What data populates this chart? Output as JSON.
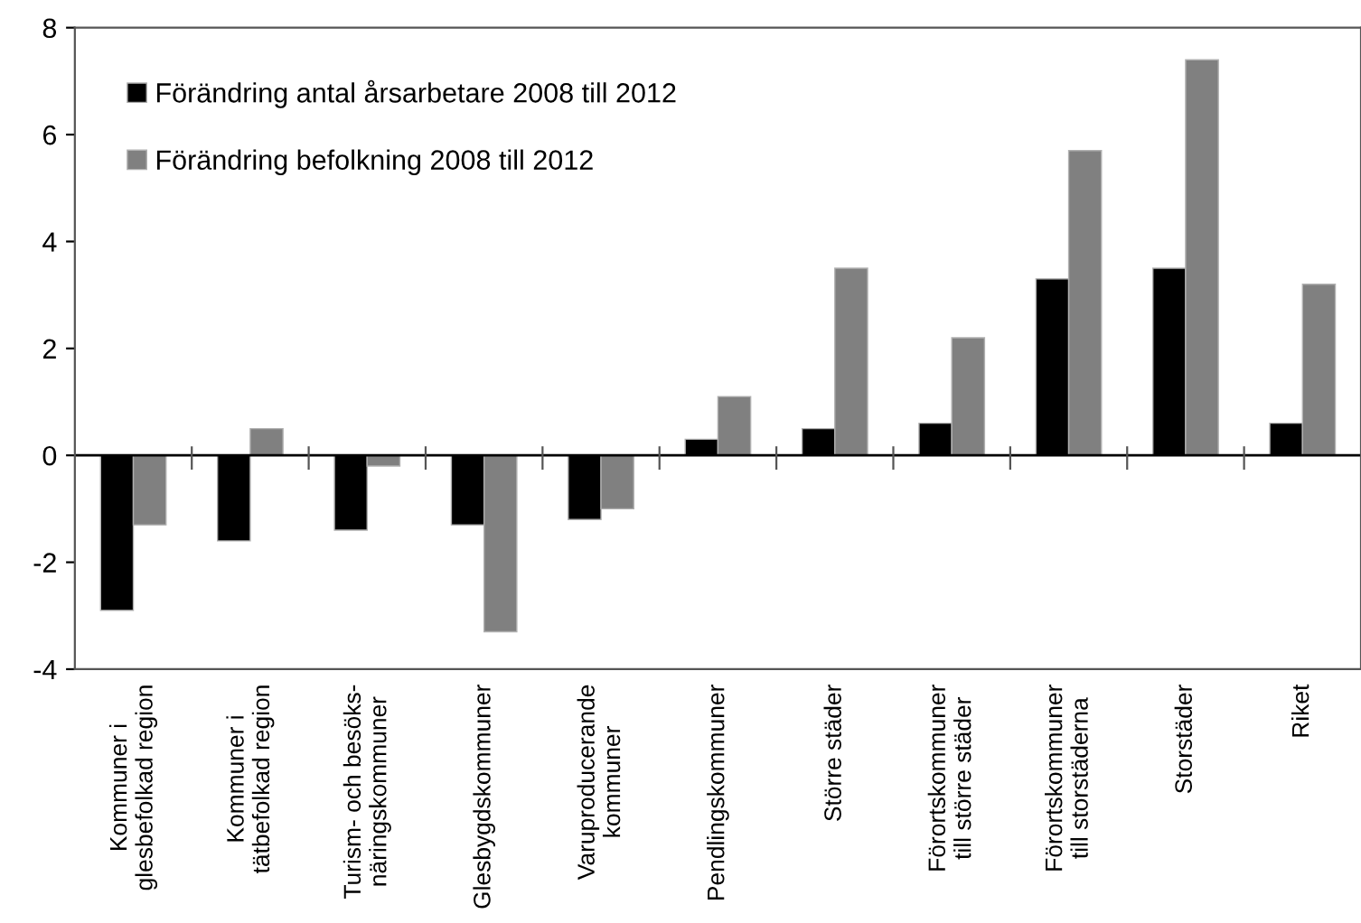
{
  "chart_data": {
    "type": "bar",
    "categories": [
      "Kommuner i\nglesbefolkad region",
      "Kommuner i\ntätbefolkad region",
      "Turism- och besöks-\nnäringskommuner",
      "Glesbygdskommuner",
      "Varuproducerande\nkommuner",
      "Pendlingskommuner",
      "Större städer",
      "Förortskommuner\ntill större städer",
      "Förortskommuner\ntill storstäderna",
      "Storstäder",
      "Riket"
    ],
    "series": [
      {
        "name": "Förändring antal årsarbetare 2008 till 2012",
        "color": "#000000",
        "values": [
          -2.9,
          -1.6,
          -1.4,
          -1.3,
          -1.2,
          0.3,
          0.5,
          0.6,
          3.3,
          3.5,
          0.6
        ]
      },
      {
        "name": "Förändring befolkning 2008 till 2012",
        "color": "#808080",
        "values": [
          -1.3,
          0.5,
          -0.2,
          -3.3,
          -1.0,
          1.1,
          3.5,
          2.2,
          5.7,
          7.4,
          3.2
        ]
      }
    ],
    "ylim": [
      -4,
      8
    ],
    "yticks": [
      -4,
      -2,
      0,
      2,
      4,
      6,
      8
    ],
    "legend": "top left"
  }
}
